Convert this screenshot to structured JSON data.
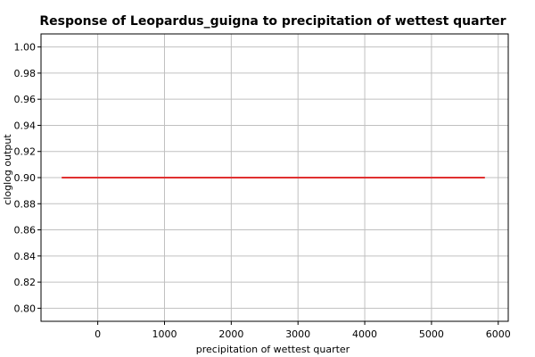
{
  "chart_data": {
    "type": "line",
    "title": "Response of Leopardus_guigna to precipitation of wettest quarter",
    "xlabel": "precipitation of wettest quarter",
    "ylabel": "cloglog output",
    "xlim": [
      -850,
      6150
    ],
    "ylim": [
      0.79,
      1.01
    ],
    "x_ticks": [
      0,
      1000,
      2000,
      3000,
      4000,
      5000,
      6000
    ],
    "x_tick_labels": [
      "0",
      "1000",
      "2000",
      "3000",
      "4000",
      "5000",
      "6000"
    ],
    "y_ticks": [
      0.8,
      0.82,
      0.84,
      0.86,
      0.88,
      0.9,
      0.92,
      0.94,
      0.96,
      0.98,
      1.0
    ],
    "y_tick_labels": [
      "0.80",
      "0.82",
      "0.84",
      "0.86",
      "0.88",
      "0.90",
      "0.92",
      "0.94",
      "0.96",
      "0.98",
      "1.00"
    ],
    "grid": true,
    "series": [
      {
        "color": "#e03030",
        "x": [
          -540,
          5800
        ],
        "y": [
          0.9,
          0.9
        ]
      }
    ]
  }
}
